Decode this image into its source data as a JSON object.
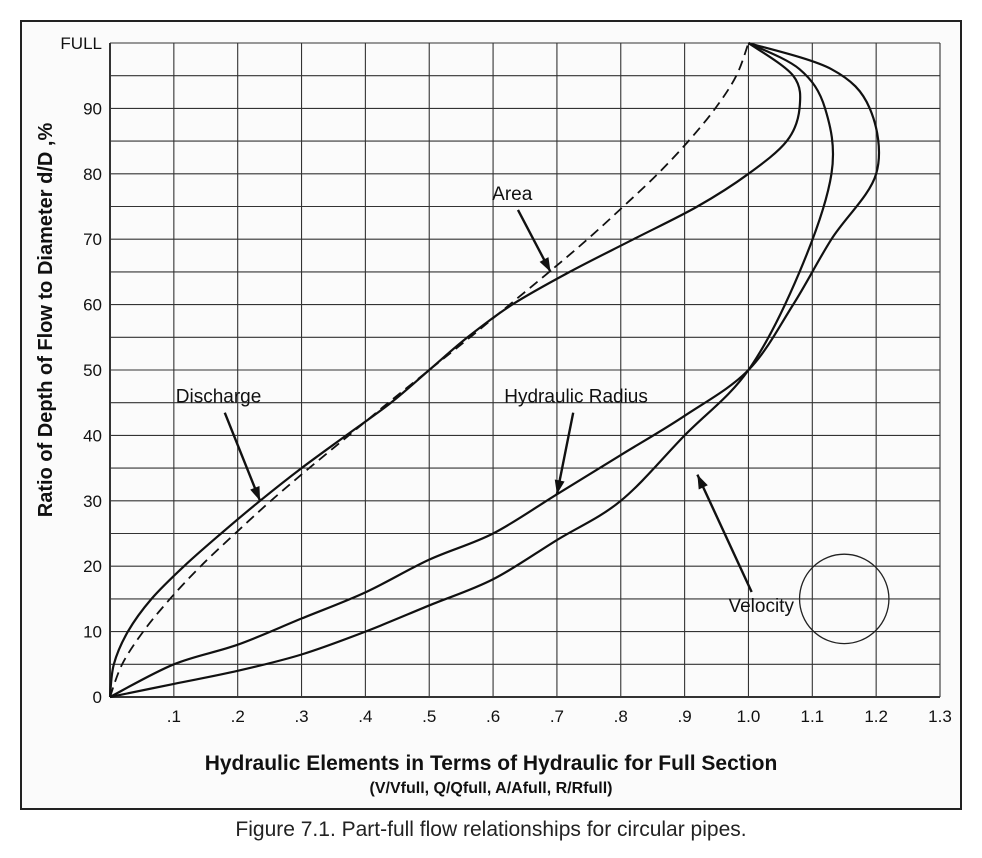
{
  "chart_data": {
    "type": "line",
    "xlabel": "Hydraulic Elements in Terms of Hydraulic for Full Section",
    "xlabel_sub": "(V/Vfull, Q/Qfull, A/Afull, R/Rfull)",
    "ylabel": "Ratio of Depth of Flow to Diameter d/D ,%",
    "caption": "Figure 7.1.  Part-full flow relationships for circular pipes.",
    "xlim": [
      0,
      1.3
    ],
    "ylim": [
      0,
      100
    ],
    "x_ticks": [
      {
        "value": 0.1,
        "label": ".1"
      },
      {
        "value": 0.2,
        "label": ".2"
      },
      {
        "value": 0.3,
        "label": ".3"
      },
      {
        "value": 0.4,
        "label": ".4"
      },
      {
        "value": 0.5,
        "label": ".5"
      },
      {
        "value": 0.6,
        "label": ".6"
      },
      {
        "value": 0.7,
        "label": ".7"
      },
      {
        "value": 0.8,
        "label": ".8"
      },
      {
        "value": 0.9,
        "label": ".9"
      },
      {
        "value": 1.0,
        "label": "1.0"
      },
      {
        "value": 1.1,
        "label": "1.1"
      },
      {
        "value": 1.2,
        "label": "1.2"
      },
      {
        "value": 1.3,
        "label": "1.3"
      }
    ],
    "y_ticks": [
      {
        "value": 0,
        "label": "0"
      },
      {
        "value": 10,
        "label": "10"
      },
      {
        "value": 20,
        "label": "20"
      },
      {
        "value": 30,
        "label": "30"
      },
      {
        "value": 40,
        "label": "40"
      },
      {
        "value": 50,
        "label": "50"
      },
      {
        "value": 60,
        "label": "60"
      },
      {
        "value": 70,
        "label": "70"
      },
      {
        "value": 80,
        "label": "80"
      },
      {
        "value": 90,
        "label": "90"
      },
      {
        "value": 100,
        "label": "FULL"
      }
    ],
    "x_grid_step": 0.1,
    "y_grid_step": 5,
    "grid": true,
    "series": [
      {
        "name": "Area",
        "style": "dashed",
        "points": [
          [
            0,
            0
          ],
          [
            0.019,
            5
          ],
          [
            0.052,
            10
          ],
          [
            0.094,
            15
          ],
          [
            0.142,
            20
          ],
          [
            0.196,
            25
          ],
          [
            0.252,
            30
          ],
          [
            0.312,
            35
          ],
          [
            0.374,
            40
          ],
          [
            0.436,
            45
          ],
          [
            0.5,
            50
          ],
          [
            0.564,
            55
          ],
          [
            0.626,
            60
          ],
          [
            0.688,
            65
          ],
          [
            0.748,
            70
          ],
          [
            0.804,
            75
          ],
          [
            0.858,
            80
          ],
          [
            0.906,
            85
          ],
          [
            0.948,
            90
          ],
          [
            0.981,
            95
          ],
          [
            1.0,
            100
          ]
        ]
      },
      {
        "name": "Discharge",
        "style": "solid",
        "points": [
          [
            0,
            0
          ],
          [
            0.006,
            5
          ],
          [
            0.028,
            10
          ],
          [
            0.065,
            15
          ],
          [
            0.116,
            20
          ],
          [
            0.174,
            25
          ],
          [
            0.235,
            30
          ],
          [
            0.3,
            35
          ],
          [
            0.37,
            40
          ],
          [
            0.44,
            45
          ],
          [
            0.5,
            50
          ],
          [
            0.56,
            55
          ],
          [
            0.63,
            60
          ],
          [
            0.72,
            65
          ],
          [
            0.82,
            70
          ],
          [
            0.92,
            75
          ],
          [
            1.0,
            80
          ],
          [
            1.06,
            85
          ],
          [
            1.08,
            90
          ],
          [
            1.07,
            95
          ],
          [
            1.0,
            100
          ]
        ]
      },
      {
        "name": "Hydraulic Radius",
        "style": "solid",
        "points": [
          [
            0,
            0
          ],
          [
            0.1,
            5
          ],
          [
            0.2,
            8
          ],
          [
            0.3,
            12
          ],
          [
            0.4,
            16
          ],
          [
            0.5,
            21
          ],
          [
            0.6,
            25
          ],
          [
            0.7,
            31
          ],
          [
            0.8,
            37
          ],
          [
            0.9,
            43
          ],
          [
            1.0,
            50
          ],
          [
            1.07,
            60
          ],
          [
            1.13,
            70
          ],
          [
            1.2,
            80
          ],
          [
            1.19,
            90
          ],
          [
            1.13,
            96
          ],
          [
            1.0,
            100
          ]
        ]
      },
      {
        "name": "Velocity",
        "style": "solid",
        "points": [
          [
            0,
            0
          ],
          [
            0.1,
            2
          ],
          [
            0.2,
            4
          ],
          [
            0.3,
            6.5
          ],
          [
            0.4,
            10
          ],
          [
            0.5,
            14
          ],
          [
            0.6,
            18
          ],
          [
            0.7,
            24
          ],
          [
            0.8,
            30
          ],
          [
            0.9,
            40
          ],
          [
            1.0,
            50
          ],
          [
            1.08,
            65
          ],
          [
            1.13,
            80
          ],
          [
            1.12,
            90
          ],
          [
            1.08,
            96
          ],
          [
            1.0,
            100
          ]
        ]
      }
    ],
    "annotations": [
      {
        "text": "Area",
        "tx": 0.63,
        "ty": 76,
        "ax": 0.69,
        "ay": 65
      },
      {
        "text": "Discharge",
        "tx": 0.17,
        "ty": 45,
        "ax": 0.235,
        "ay": 30
      },
      {
        "text": "Hydraulic Radius",
        "tx": 0.73,
        "ty": 45,
        "ax": 0.7,
        "ay": 31
      },
      {
        "text": "Velocity",
        "tx": 1.02,
        "ty": 13,
        "ax": 0.92,
        "ay": 34
      }
    ],
    "circle_marker": {
      "cx": 1.15,
      "cy": 15,
      "r_units_x": 0.07
    }
  }
}
